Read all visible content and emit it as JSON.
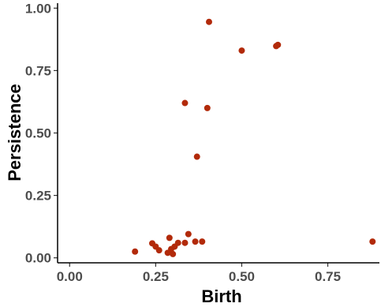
{
  "chart_data": {
    "type": "scatter",
    "title": "",
    "xlabel": "Birth",
    "ylabel": "Persistence",
    "xlim": [
      -0.035,
      0.9
    ],
    "ylim": [
      -0.02,
      1.02
    ],
    "x_ticks": [
      0.0,
      0.25,
      0.5,
      0.75
    ],
    "x_tick_labels": [
      "0.00",
      "0.25",
      "0.50",
      "0.75"
    ],
    "y_ticks": [
      0.0,
      0.25,
      0.5,
      0.75,
      1.0
    ],
    "y_tick_labels": [
      "0.00",
      "0.25",
      "0.50",
      "0.75",
      "1.00"
    ],
    "grid": false,
    "point_color": "#B22A0A",
    "points": [
      {
        "x": 0.19,
        "y": 0.025
      },
      {
        "x": 0.24,
        "y": 0.058
      },
      {
        "x": 0.25,
        "y": 0.045
      },
      {
        "x": 0.26,
        "y": 0.03
      },
      {
        "x": 0.285,
        "y": 0.02
      },
      {
        "x": 0.29,
        "y": 0.08
      },
      {
        "x": 0.295,
        "y": 0.035
      },
      {
        "x": 0.3,
        "y": 0.015
      },
      {
        "x": 0.305,
        "y": 0.045
      },
      {
        "x": 0.315,
        "y": 0.06
      },
      {
        "x": 0.335,
        "y": 0.06
      },
      {
        "x": 0.335,
        "y": 0.62
      },
      {
        "x": 0.345,
        "y": 0.095
      },
      {
        "x": 0.365,
        "y": 0.065
      },
      {
        "x": 0.37,
        "y": 0.405
      },
      {
        "x": 0.385,
        "y": 0.065
      },
      {
        "x": 0.4,
        "y": 0.6
      },
      {
        "x": 0.405,
        "y": 0.945
      },
      {
        "x": 0.5,
        "y": 0.83
      },
      {
        "x": 0.6,
        "y": 0.848
      },
      {
        "x": 0.605,
        "y": 0.853
      },
      {
        "x": 0.88,
        "y": 0.065
      }
    ]
  }
}
